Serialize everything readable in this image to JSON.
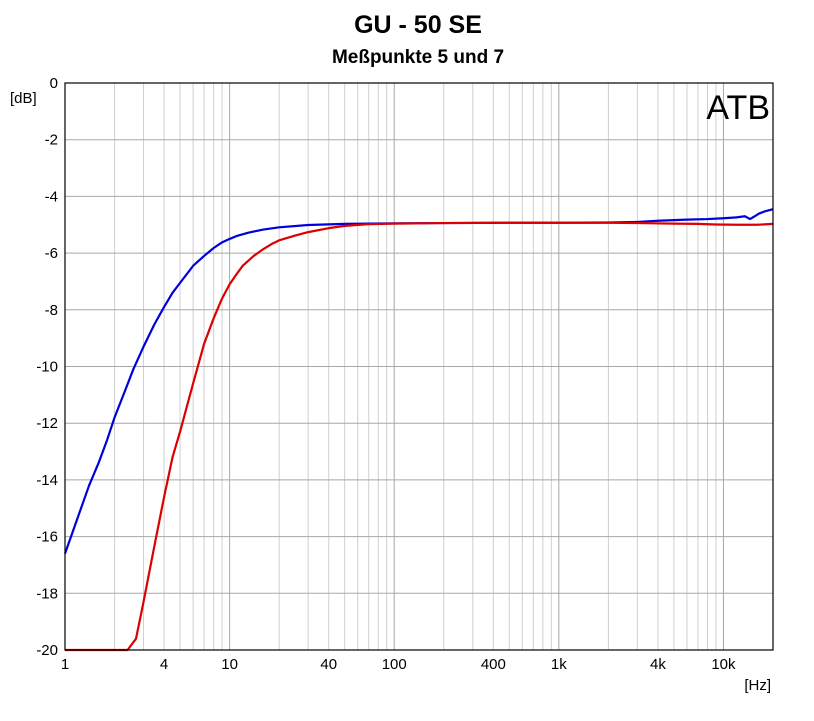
{
  "chart_data": {
    "type": "line",
    "title": "GU - 50 SE",
    "subtitle": "Meßpunkte 5 und 7",
    "ylabel": "[dB]",
    "xlabel": "[Hz]",
    "watermark": "ATB",
    "x_scale": "log",
    "xlim": [
      1,
      20000
    ],
    "ylim": [
      -20,
      0
    ],
    "grid": true,
    "x_ticks": [
      {
        "value": 1,
        "label": "1"
      },
      {
        "value": 4,
        "label": "4"
      },
      {
        "value": 10,
        "label": "10"
      },
      {
        "value": 40,
        "label": "40"
      },
      {
        "value": 100,
        "label": "100"
      },
      {
        "value": 400,
        "label": "400"
      },
      {
        "value": 1000,
        "label": "1k"
      },
      {
        "value": 4000,
        "label": "4k"
      },
      {
        "value": 10000,
        "label": "10k"
      }
    ],
    "y_ticks": [
      {
        "value": 0,
        "label": "0"
      },
      {
        "value": -2,
        "label": "-2"
      },
      {
        "value": -4,
        "label": "-4"
      },
      {
        "value": -6,
        "label": "-6"
      },
      {
        "value": -8,
        "label": "-8"
      },
      {
        "value": -10,
        "label": "-10"
      },
      {
        "value": -12,
        "label": "-12"
      },
      {
        "value": -14,
        "label": "-14"
      },
      {
        "value": -16,
        "label": "-16"
      },
      {
        "value": -18,
        "label": "-18"
      },
      {
        "value": -20,
        "label": "-20"
      }
    ],
    "series": [
      {
        "color": "#0000dd",
        "points": [
          [
            1,
            -16.6
          ],
          [
            1.2,
            -15.3
          ],
          [
            1.4,
            -14.2
          ],
          [
            1.6,
            -13.4
          ],
          [
            1.8,
            -12.6
          ],
          [
            2,
            -11.8
          ],
          [
            2.3,
            -10.9
          ],
          [
            2.6,
            -10.1
          ],
          [
            3,
            -9.3
          ],
          [
            3.5,
            -8.5
          ],
          [
            4,
            -7.9
          ],
          [
            4.5,
            -7.4
          ],
          [
            5,
            -7.05
          ],
          [
            6,
            -6.45
          ],
          [
            7,
            -6.1
          ],
          [
            8,
            -5.82
          ],
          [
            9,
            -5.62
          ],
          [
            10,
            -5.5
          ],
          [
            11,
            -5.4
          ],
          [
            13,
            -5.28
          ],
          [
            16,
            -5.17
          ],
          [
            20,
            -5.09
          ],
          [
            30,
            -5.01
          ],
          [
            50,
            -4.97
          ],
          [
            100,
            -4.95
          ],
          [
            200,
            -4.94
          ],
          [
            500,
            -4.93
          ],
          [
            1000,
            -4.93
          ],
          [
            2000,
            -4.92
          ],
          [
            3000,
            -4.9
          ],
          [
            4000,
            -4.86
          ],
          [
            6000,
            -4.82
          ],
          [
            8000,
            -4.8
          ],
          [
            10000,
            -4.77
          ],
          [
            12000,
            -4.74
          ],
          [
            13500,
            -4.7
          ],
          [
            14500,
            -4.8
          ],
          [
            15500,
            -4.7
          ],
          [
            16500,
            -4.6
          ],
          [
            18000,
            -4.52
          ],
          [
            20000,
            -4.45
          ]
        ]
      },
      {
        "color": "#dd0000",
        "points": [
          [
            1,
            -20
          ],
          [
            2.4,
            -20
          ],
          [
            2.7,
            -19.6
          ],
          [
            3,
            -18.3
          ],
          [
            3.5,
            -16.3
          ],
          [
            4,
            -14.6
          ],
          [
            4.5,
            -13.2
          ],
          [
            5,
            -12.3
          ],
          [
            6,
            -10.6
          ],
          [
            7,
            -9.2
          ],
          [
            8,
            -8.3
          ],
          [
            9,
            -7.6
          ],
          [
            10,
            -7.1
          ],
          [
            11,
            -6.75
          ],
          [
            12,
            -6.45
          ],
          [
            14,
            -6.1
          ],
          [
            16,
            -5.86
          ],
          [
            18,
            -5.68
          ],
          [
            20,
            -5.55
          ],
          [
            25,
            -5.38
          ],
          [
            30,
            -5.26
          ],
          [
            40,
            -5.12
          ],
          [
            50,
            -5.04
          ],
          [
            70,
            -4.98
          ],
          [
            100,
            -4.96
          ],
          [
            200,
            -4.94
          ],
          [
            500,
            -4.93
          ],
          [
            1000,
            -4.93
          ],
          [
            2000,
            -4.93
          ],
          [
            3000,
            -4.94
          ],
          [
            5000,
            -4.96
          ],
          [
            7000,
            -4.97
          ],
          [
            9000,
            -4.99
          ],
          [
            12000,
            -5.0
          ],
          [
            16000,
            -5.0
          ],
          [
            20000,
            -4.97
          ]
        ]
      }
    ]
  }
}
